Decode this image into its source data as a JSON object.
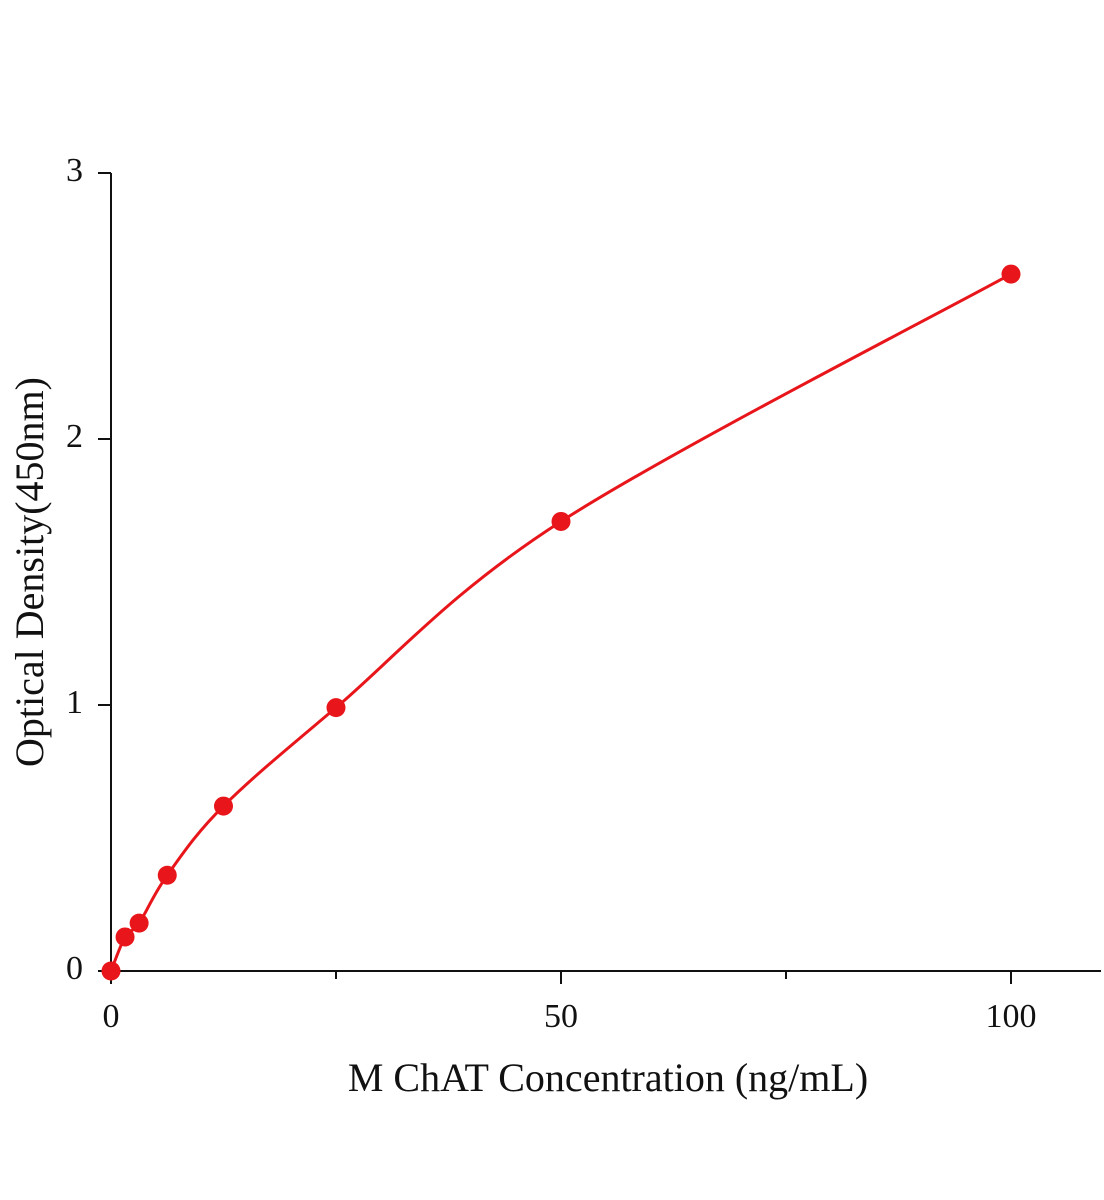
{
  "chart_data": {
    "type": "scatter",
    "x_label": "M ChAT Concentration (ng/mL)",
    "y_label": "Optical Density(450nm)",
    "xlim": [
      0,
      110
    ],
    "xticks": [
      0,
      50,
      100
    ],
    "xminorticks": [
      25,
      75
    ],
    "ylim": [
      0,
      3
    ],
    "yticks": [
      0,
      1,
      2,
      3
    ],
    "fit_line": true,
    "series": [
      {
        "color": "#e8161b",
        "x": [
          0,
          1.5625,
          3.125,
          6.25,
          12.5,
          25,
          50,
          100
        ],
        "values": [
          0,
          0.128,
          0.18,
          0.36,
          0.62,
          0.99,
          1.69,
          2.62
        ]
      }
    ]
  }
}
